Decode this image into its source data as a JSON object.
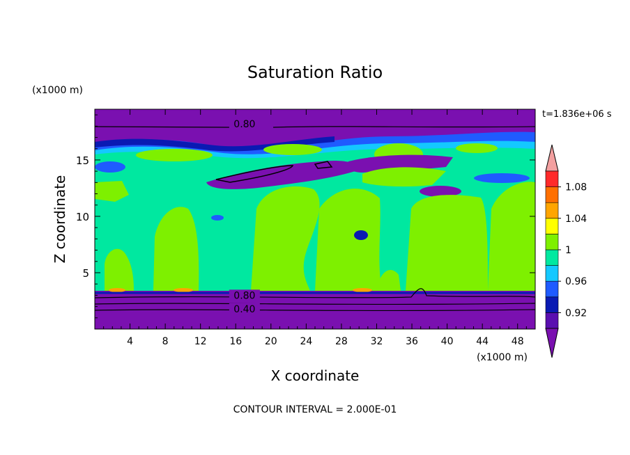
{
  "chart_data": {
    "type": "heatmap",
    "title": "Saturation Ratio",
    "xlabel": "X coordinate",
    "ylabel": "Z coordinate",
    "x_unit": "(x1000 m)",
    "y_unit": "(x1000 m)",
    "time_label": "t=1.836e+06 s",
    "footer": "CONTOUR INTERVAL = 2.000E-01",
    "xlim": [
      0,
      50
    ],
    "ylim": [
      0,
      19.5
    ],
    "x_ticks": [
      4,
      8,
      12,
      16,
      20,
      24,
      28,
      32,
      36,
      40,
      44,
      48
    ],
    "y_ticks": [
      5,
      10,
      15
    ],
    "contour_labels": [
      {
        "text": "0.80",
        "x": 17.0,
        "y": 18.2
      },
      {
        "text": "0.80",
        "x": 17.0,
        "y": 3.0
      },
      {
        "text": "0.40",
        "x": 17.0,
        "y": 1.8
      }
    ],
    "colorbar": {
      "levels": [
        0.9,
        0.92,
        0.94,
        0.96,
        0.98,
        1.0,
        1.02,
        1.04,
        1.06,
        1.08,
        1.1
      ],
      "tick_labels": [
        "0.92",
        "0.96",
        "1",
        "1.04",
        "1.08"
      ],
      "colors": [
        "#5a0fb0",
        "#0a1ab3",
        "#1f5bff",
        "#14c8ff",
        "#00e8a0",
        "#7ef000",
        "#ffff00",
        "#ffa500",
        "#ff7000",
        "#ff2a2a"
      ],
      "over_color": "#f3a0a0",
      "under_color": "#7a10b0"
    },
    "regions": [
      {
        "value": "below 0.90",
        "color": "#7a10b0",
        "z_range": [
          0,
          3.3
        ]
      },
      {
        "value": "0.98-1.00",
        "color": "#00e8a0",
        "z_range": [
          3.3,
          14
        ]
      },
      {
        "value": "1.00-1.02",
        "color": "#7ef000",
        "description": "cloud columns"
      },
      {
        "value": "below 0.90",
        "color": "#7a10b0",
        "z_range": [
          17.5,
          19.5
        ]
      }
    ]
  }
}
